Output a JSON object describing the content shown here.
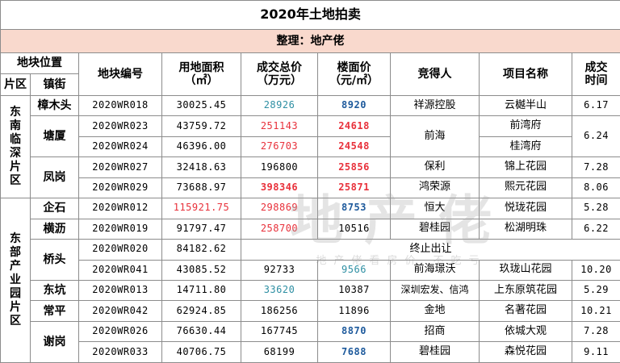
{
  "title": "2020年土地拍卖",
  "organizer": "整理：地产佬",
  "headers": {
    "location_group": "地块位置",
    "area_zone": "片区",
    "town": "镇街",
    "plot_code": "地块编号",
    "land_area_line1": "用地面积",
    "land_area_line2": "（㎡）",
    "total_price_line1": "成交总价",
    "total_price_line2": "（万元）",
    "floor_price_line1": "楼面价",
    "floor_price_line2": "（元/㎡）",
    "winner": "竞得人",
    "project": "项目名称",
    "deal_time_line1": "成交",
    "deal_time_line2": "时间"
  },
  "zones": {
    "southeast_chars": [
      "东",
      "南",
      "临",
      "深",
      "片",
      "区"
    ],
    "east_chars": [
      "东",
      "部",
      "产",
      "业",
      "园",
      "片",
      "区"
    ]
  },
  "towns": {
    "zhangmutou": "樟木头",
    "tangxia": "塘厦",
    "fenggang": "凤岗",
    "qishi": "企石",
    "hengli": "横沥",
    "qiaotou": "桥头",
    "dongkeng": "东坑",
    "changping": "常平",
    "xiegang": "谢岗"
  },
  "rows": [
    {
      "code": "2020WR018",
      "area": "30025.45",
      "total": "28926",
      "floor": "8920",
      "winner": "祥源控股",
      "project": "云樾半山",
      "date": "6.17"
    },
    {
      "code": "2020WR023",
      "area": "43759.72",
      "total": "251143",
      "floor": "24618",
      "winner": "前海",
      "project": "前湾府",
      "date": "6.24"
    },
    {
      "code": "2020WR024",
      "area": "46396.00",
      "total": "276703",
      "floor": "24548",
      "winner": "",
      "project": "桂湾府",
      "date": ""
    },
    {
      "code": "2020WR027",
      "area": "32418.63",
      "total": "196800",
      "floor": "25856",
      "winner": "保利",
      "project": "锦上花园",
      "date": "7.28"
    },
    {
      "code": "2020WR029",
      "area": "73688.97",
      "total": "398346",
      "floor": "25871",
      "winner": "鸿荣源",
      "project": "熙元花园",
      "date": "8.06"
    },
    {
      "code": "2020WR012",
      "area": "115921.75",
      "total": "298869",
      "floor": "8753",
      "winner": "恒大",
      "project": "悦珑花园",
      "date": "5.28"
    },
    {
      "code": "2020WR019",
      "area": "91797.47",
      "total": "258700",
      "floor": "10516",
      "winner": "碧桂园",
      "project": "松湖明珠",
      "date": "6.22"
    },
    {
      "code": "2020WR020",
      "area": "84182.62",
      "total": "",
      "floor": "",
      "winner": "",
      "project": "",
      "date": "",
      "status": "终止出让"
    },
    {
      "code": "2020WR041",
      "area": "43085.52",
      "total": "92733",
      "floor": "9566",
      "winner": "前海璟沃",
      "project": "玖珑山花园",
      "date": "10.20"
    },
    {
      "code": "2020WR013",
      "area": "14711.80",
      "total": "33620",
      "floor": "10387",
      "winner": "深圳宏发、信鸿",
      "project": "上东原筑花园",
      "date": "5.29"
    },
    {
      "code": "2020WR042",
      "area": "62924.85",
      "total": "186256",
      "floor": "11896",
      "winner": "金地",
      "project": "名著花园",
      "date": "10.21"
    },
    {
      "code": "2020WR026",
      "area": "76630.44",
      "total": "167745",
      "floor": "8870",
      "winner": "招商",
      "project": "依城大观",
      "date": "7.28"
    },
    {
      "code": "2020WR033",
      "area": "40706.75",
      "total": "68199",
      "floor": "7688",
      "winner": "碧桂园",
      "project": "森悦花园",
      "date": "9.11"
    }
  ],
  "watermark": {
    "main": "地产佬",
    "sub": "地产佬看房价 不吃亏"
  },
  "colors": {
    "header_bg": "#f9d9cd",
    "red": "#e8303a",
    "teal": "#2e8fa3",
    "navy_blue": "#1e5a9c",
    "border": "#8c8c8c"
  }
}
